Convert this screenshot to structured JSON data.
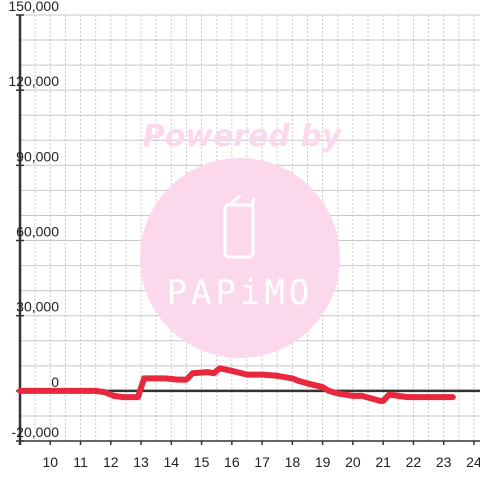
{
  "chart_data": {
    "type": "line",
    "title": "",
    "xlabel": "",
    "ylabel": "",
    "xlim": [
      9,
      24.2
    ],
    "ylim": [
      -20000,
      150000
    ],
    "x_ticks": [
      10,
      11,
      12,
      13,
      14,
      15,
      16,
      17,
      18,
      19,
      20,
      21,
      22,
      23,
      24
    ],
    "x_tick_labels": [
      "10",
      "11",
      "12",
      "13",
      "14",
      "15",
      "16",
      "17",
      "18",
      "19",
      "20",
      "21",
      "22",
      "23",
      "24"
    ],
    "y_ticks": [
      -20000,
      0,
      30000,
      60000,
      90000,
      120000,
      150000
    ],
    "y_tick_labels": [
      "-20,000",
      "0",
      "30,000",
      "60,000",
      "90,000",
      "120,000",
      "150,000"
    ],
    "grid": true,
    "legend": "none",
    "series": [
      {
        "color": "#e8283c",
        "x": [
          9.0,
          11.5,
          11.8,
          12.1,
          12.4,
          12.9,
          13.1,
          13.8,
          14.2,
          14.5,
          14.7,
          15.2,
          15.4,
          15.6,
          16.0,
          16.5,
          17.0,
          17.5,
          18.0,
          18.2,
          18.5,
          19.0,
          19.2,
          19.5,
          20.0,
          20.3,
          20.6,
          20.9,
          21.0,
          21.2,
          21.5,
          21.8,
          22.0,
          22.5,
          23.0,
          23.3
        ],
        "y": [
          0,
          0,
          -500,
          -2000,
          -2500,
          -2500,
          5000,
          5000,
          4500,
          4500,
          7000,
          7500,
          7000,
          9000,
          8000,
          6500,
          6500,
          6000,
          5000,
          4000,
          3000,
          1500,
          0,
          -1000,
          -2000,
          -2000,
          -3000,
          -4000,
          -4000,
          -1500,
          -2000,
          -2500,
          -2500,
          -2500,
          -2500,
          -2500
        ]
      }
    ]
  },
  "watermark": {
    "text": "Powered by",
    "brand": "PAPiMO",
    "color": "#fcd8ec"
  }
}
